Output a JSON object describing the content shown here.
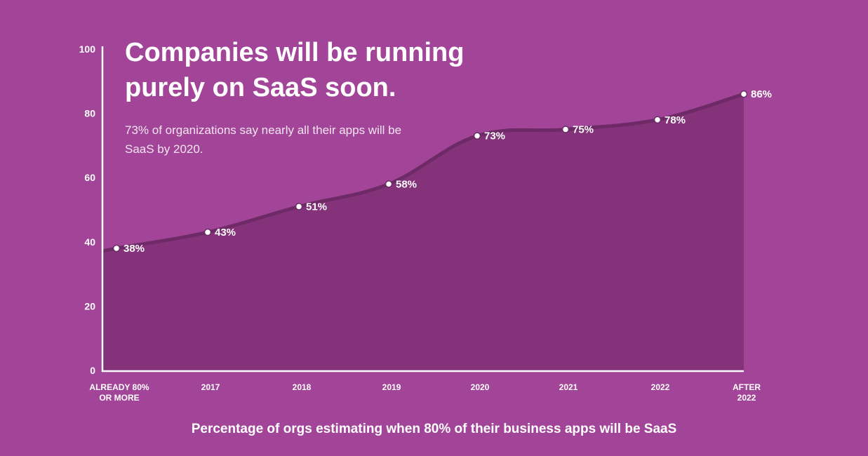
{
  "headline": "Companies will be running purely on SaaS soon.",
  "subtext": "73% of organizations say nearly all their apps will be SaaS by 2020.",
  "caption": "Percentage of orgs estimating when 80% of their business apps will be SaaS",
  "colors": {
    "background": "#a24598",
    "area_fill": "#84337a",
    "line": "#6e2a66",
    "axis": "#ffffff",
    "point": "#ffffff"
  },
  "chart_data": {
    "type": "area",
    "categories": [
      [
        "ALREADY 80%",
        "OR MORE"
      ],
      [
        "2017"
      ],
      [
        "2018"
      ],
      [
        "2019"
      ],
      [
        "2020"
      ],
      [
        "2021"
      ],
      [
        "2022"
      ],
      [
        "AFTER",
        "2022"
      ]
    ],
    "values": [
      38,
      43,
      51,
      58,
      73,
      75,
      78,
      86
    ],
    "data_labels": [
      "38%",
      "43%",
      "51%",
      "58%",
      "73%",
      "75%",
      "78%",
      "86%"
    ],
    "ylim": [
      0,
      100
    ],
    "yticks": [
      "0",
      "20",
      "40",
      "60",
      "80",
      "100"
    ],
    "ytick_values": [
      0,
      20,
      40,
      60,
      80,
      100
    ],
    "xlabel": "",
    "ylabel": "",
    "grid": false
  }
}
